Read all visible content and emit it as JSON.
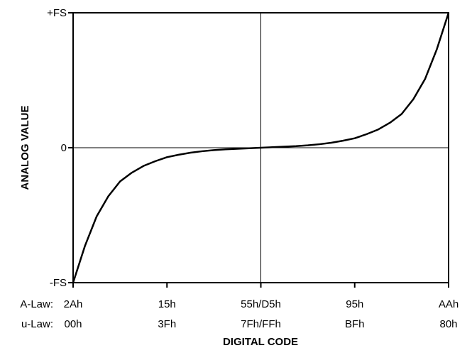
{
  "chart_data": {
    "type": "line",
    "ylabel": "ANALOG VALUE",
    "xlabel": "DIGITAL CODE",
    "y_ticks": [
      "+FS",
      "0",
      "-FS"
    ],
    "x_ticks": [
      {
        "alaw": "2Ah",
        "ulaw": "00h"
      },
      {
        "alaw": "15h",
        "ulaw": "3Fh"
      },
      {
        "alaw": "55h/D5h",
        "ulaw": "7Fh/FFh"
      },
      {
        "alaw": "95h",
        "ulaw": "BFh"
      },
      {
        "alaw": "AAh",
        "ulaw": "80h"
      }
    ],
    "row_labels": {
      "alaw": "A-Law:",
      "ulaw": "u-Law:"
    },
    "xlim": [
      0,
      8
    ],
    "ylim": [
      -1,
      1
    ],
    "grid": "center crosshair at 0",
    "series": [
      {
        "x": [
          0,
          0.25,
          0.5,
          0.75,
          1,
          1.25,
          1.5,
          1.75,
          2,
          2.25,
          2.5,
          2.75,
          3,
          3.25,
          3.5,
          3.75,
          4,
          4.25,
          4.5,
          4.75,
          5,
          5.25,
          5.5,
          5.75,
          6,
          6.25,
          6.5,
          6.75,
          7,
          7.25,
          7.5,
          7.75,
          8
        ],
        "y": [
          -1,
          -0.73,
          -0.51,
          -0.36,
          -0.25,
          -0.185,
          -0.135,
          -0.1,
          -0.07,
          -0.052,
          -0.037,
          -0.026,
          -0.018,
          -0.012,
          -0.008,
          -0.004,
          0,
          0.004,
          0.008,
          0.012,
          0.018,
          0.026,
          0.037,
          0.052,
          0.07,
          0.1,
          0.135,
          0.185,
          0.25,
          0.36,
          0.51,
          0.73,
          1
        ]
      }
    ],
    "line_color": "#000000"
  }
}
